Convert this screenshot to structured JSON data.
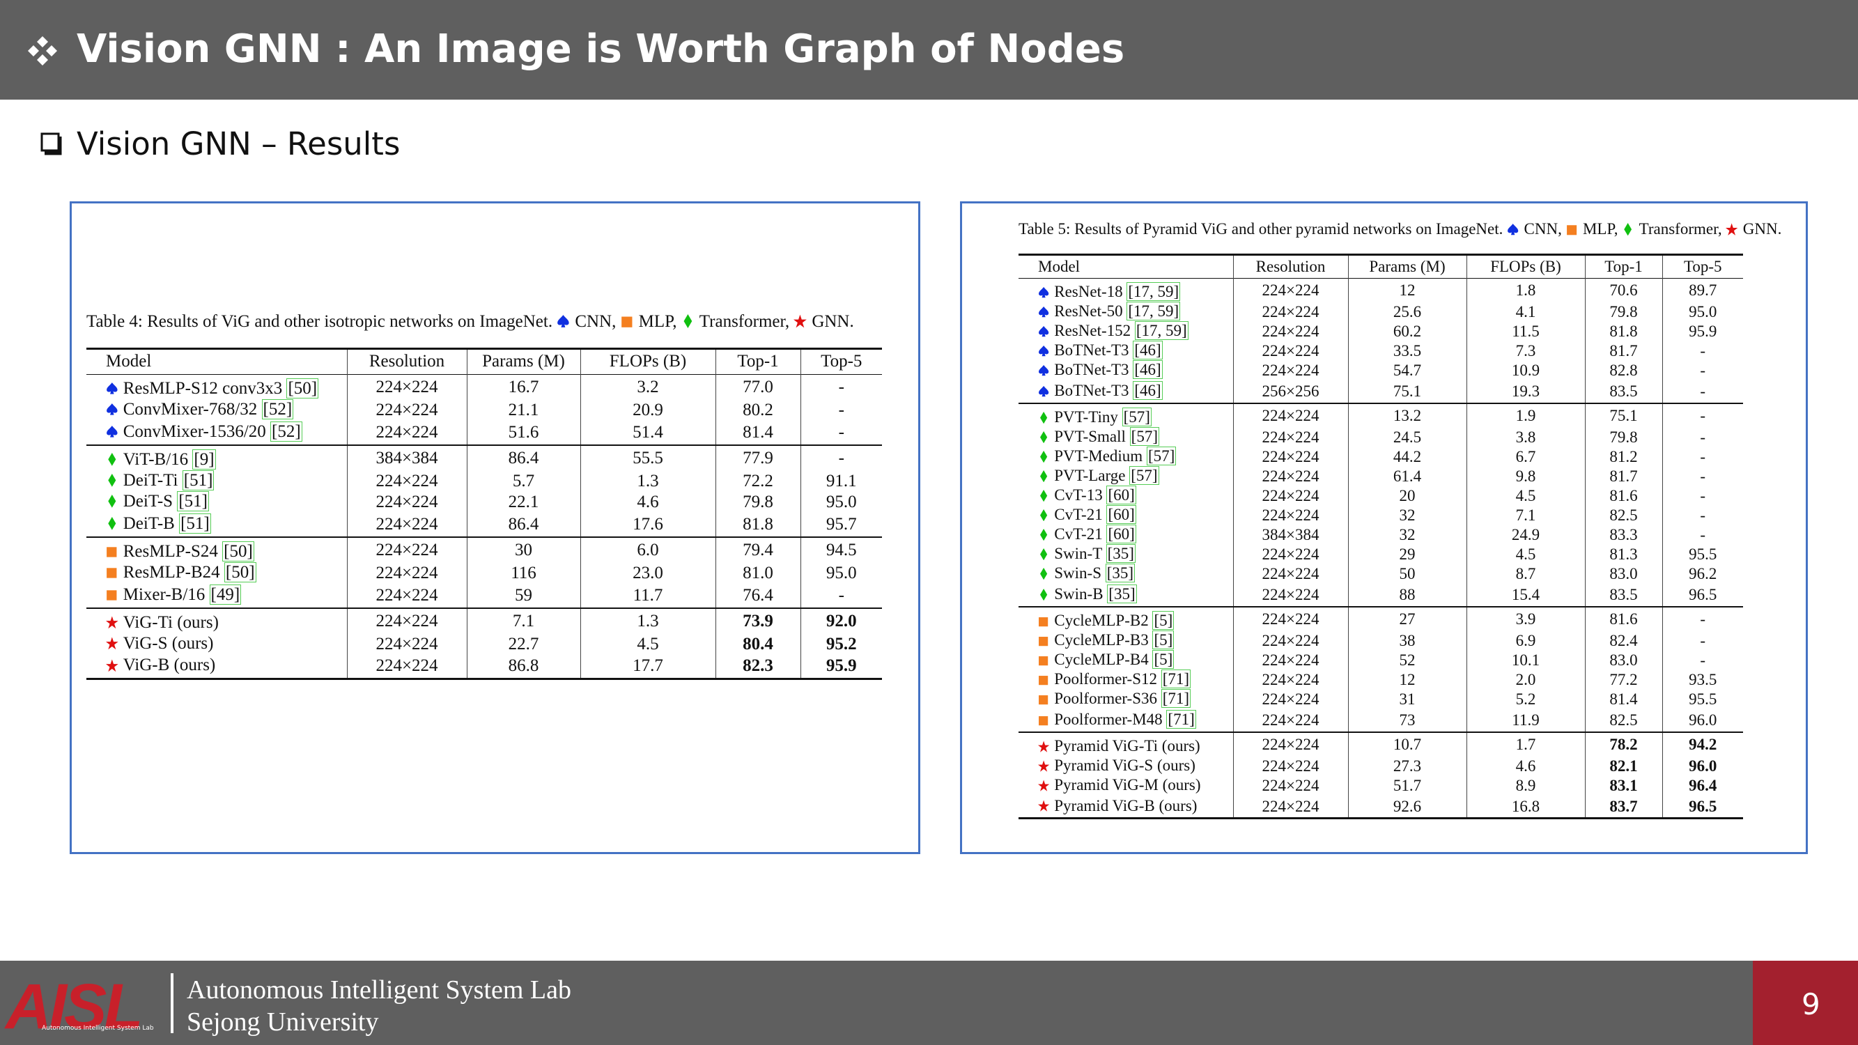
{
  "header": {
    "title": "Vision GNN : An Image is Worth Graph of Nodes"
  },
  "subtitle": "Vision GNN – Results",
  "table4": {
    "caption": "Table 4: Results of ViG and other isotropic networks on ImageNet.",
    "legend": [
      "CNN",
      "MLP",
      "Transformer",
      "GNN"
    ],
    "header": [
      "Model",
      "Resolution",
      "Params (M)",
      "FLOPs (B)",
      "Top-1",
      "Top-5"
    ],
    "groups": [
      {
        "rows": [
          {
            "model": "ResMLP-S12 conv3x3",
            "ref": "[50]",
            "cells": [
              "224×224",
              "16.7",
              "3.2",
              "77.0",
              "-"
            ]
          },
          {
            "model": "ConvMixer-768/32",
            "ref": "[52]",
            "cells": [
              "224×224",
              "21.1",
              "20.9",
              "80.2",
              "-"
            ]
          },
          {
            "model": "ConvMixer-1536/20",
            "ref": "[52]",
            "cells": [
              "224×224",
              "51.6",
              "51.4",
              "81.4",
              "-"
            ]
          }
        ]
      },
      {
        "rows": [
          {
            "model": "ViT-B/16",
            "ref": "[9]",
            "cells": [
              "384×384",
              "86.4",
              "55.5",
              "77.9",
              "-"
            ]
          },
          {
            "model": "DeiT-Ti",
            "ref": "[51]",
            "cells": [
              "224×224",
              "5.7",
              "1.3",
              "72.2",
              "91.1"
            ]
          },
          {
            "model": "DeiT-S",
            "ref": "[51]",
            "cells": [
              "224×224",
              "22.1",
              "4.6",
              "79.8",
              "95.0"
            ]
          },
          {
            "model": "DeiT-B",
            "ref": "[51]",
            "cells": [
              "224×224",
              "86.4",
              "17.6",
              "81.8",
              "95.7"
            ]
          }
        ]
      },
      {
        "rows": [
          {
            "model": "ResMLP-S24",
            "ref": "[50]",
            "cells": [
              "224×224",
              "30",
              "6.0",
              "79.4",
              "94.5"
            ]
          },
          {
            "model": "ResMLP-B24",
            "ref": "[50]",
            "cells": [
              "224×224",
              "116",
              "23.0",
              "81.0",
              "95.0"
            ]
          },
          {
            "model": "Mixer-B/16",
            "ref": "[49]",
            "cells": [
              "224×224",
              "59",
              "11.7",
              "76.4",
              "-"
            ]
          }
        ]
      },
      {
        "rows": [
          {
            "model": "ViG-Ti (ours)",
            "cells": [
              "224×224",
              "7.1",
              "1.3",
              "73.9",
              "92.0"
            ]
          },
          {
            "model": "ViG-S (ours)",
            "cells": [
              "224×224",
              "22.7",
              "4.5",
              "80.4",
              "95.2"
            ]
          },
          {
            "model": "ViG-B (ours)",
            "cells": [
              "224×224",
              "86.8",
              "17.7",
              "82.3",
              "95.9"
            ]
          }
        ]
      }
    ]
  },
  "table5": {
    "caption": "Table 5: Results of Pyramid ViG and other pyramid networks on ImageNet.",
    "legend": [
      "CNN",
      "MLP",
      "Transformer",
      "GNN"
    ],
    "header": [
      "Model",
      "Resolution",
      "Params (M)",
      "FLOPs (B)",
      "Top-1",
      "Top-5"
    ],
    "groups": [
      {
        "rows": [
          {
            "model": "ResNet-18",
            "ref": "[17, 59]",
            "cells": [
              "224×224",
              "12",
              "1.8",
              "70.6",
              "89.7"
            ]
          },
          {
            "model": "ResNet-50",
            "ref": "[17, 59]",
            "cells": [
              "224×224",
              "25.6",
              "4.1",
              "79.8",
              "95.0"
            ]
          },
          {
            "model": "ResNet-152",
            "ref": "[17, 59]",
            "cells": [
              "224×224",
              "60.2",
              "11.5",
              "81.8",
              "95.9"
            ]
          },
          {
            "model": "BoTNet-T3",
            "ref": "[46]",
            "cells": [
              "224×224",
              "33.5",
              "7.3",
              "81.7",
              "-"
            ]
          },
          {
            "model": "BoTNet-T3",
            "ref": "[46]",
            "cells": [
              "224×224",
              "54.7",
              "10.9",
              "82.8",
              "-"
            ]
          },
          {
            "model": "BoTNet-T3",
            "ref": "[46]",
            "cells": [
              "256×256",
              "75.1",
              "19.3",
              "83.5",
              "-"
            ]
          }
        ]
      },
      {
        "rows": [
          {
            "model": "PVT-Tiny",
            "ref": "[57]",
            "cells": [
              "224×224",
              "13.2",
              "1.9",
              "75.1",
              "-"
            ]
          },
          {
            "model": "PVT-Small",
            "ref": "[57]",
            "cells": [
              "224×224",
              "24.5",
              "3.8",
              "79.8",
              "-"
            ]
          },
          {
            "model": "PVT-Medium",
            "ref": "[57]",
            "cells": [
              "224×224",
              "44.2",
              "6.7",
              "81.2",
              "-"
            ]
          },
          {
            "model": "PVT-Large",
            "ref": "[57]",
            "cells": [
              "224×224",
              "61.4",
              "9.8",
              "81.7",
              "-"
            ]
          },
          {
            "model": "CvT-13",
            "ref": "[60]",
            "cells": [
              "224×224",
              "20",
              "4.5",
              "81.6",
              "-"
            ]
          },
          {
            "model": "CvT-21",
            "ref": "[60]",
            "cells": [
              "224×224",
              "32",
              "7.1",
              "82.5",
              "-"
            ]
          },
          {
            "model": "CvT-21",
            "ref": "[60]",
            "cells": [
              "384×384",
              "32",
              "24.9",
              "83.3",
              "-"
            ]
          },
          {
            "model": "Swin-T",
            "ref": "[35]",
            "cells": [
              "224×224",
              "29",
              "4.5",
              "81.3",
              "95.5"
            ]
          },
          {
            "model": "Swin-S",
            "ref": "[35]",
            "cells": [
              "224×224",
              "50",
              "8.7",
              "83.0",
              "96.2"
            ]
          },
          {
            "model": "Swin-B",
            "ref": "[35]",
            "cells": [
              "224×224",
              "88",
              "15.4",
              "83.5",
              "96.5"
            ]
          }
        ]
      },
      {
        "rows": [
          {
            "model": "CycleMLP-B2",
            "ref": "[5]",
            "cells": [
              "224×224",
              "27",
              "3.9",
              "81.6",
              "-"
            ]
          },
          {
            "model": "CycleMLP-B3",
            "ref": "[5]",
            "cells": [
              "224×224",
              "38",
              "6.9",
              "82.4",
              "-"
            ]
          },
          {
            "model": "CycleMLP-B4",
            "ref": "[5]",
            "cells": [
              "224×224",
              "52",
              "10.1",
              "83.0",
              "-"
            ]
          },
          {
            "model": "Poolformer-S12",
            "ref": "[71]",
            "cells": [
              "224×224",
              "12",
              "2.0",
              "77.2",
              "93.5"
            ]
          },
          {
            "model": "Poolformer-S36",
            "ref": "[71]",
            "cells": [
              "224×224",
              "31",
              "5.2",
              "81.4",
              "95.5"
            ]
          },
          {
            "model": "Poolformer-M48",
            "ref": "[71]",
            "cells": [
              "224×224",
              "73",
              "11.9",
              "82.5",
              "96.0"
            ]
          }
        ]
      },
      {
        "rows": [
          {
            "model": "Pyramid ViG-Ti (ours)",
            "cells": [
              "224×224",
              "10.7",
              "1.7",
              "78.2",
              "94.2"
            ]
          },
          {
            "model": "Pyramid ViG-S (ours)",
            "cells": [
              "224×224",
              "27.3",
              "4.6",
              "82.1",
              "96.0"
            ]
          },
          {
            "model": "Pyramid ViG-M (ours)",
            "cells": [
              "224×224",
              "51.7",
              "8.9",
              "83.1",
              "96.4"
            ]
          },
          {
            "model": "Pyramid ViG-B (ours)",
            "cells": [
              "224×224",
              "92.6",
              "16.8",
              "83.7",
              "96.5"
            ]
          }
        ]
      }
    ]
  },
  "footer": {
    "logo": "AISL",
    "logo_caption": "Autonomous Intelligent System Lab",
    "lab": "Autonomous Intelligent System Lab",
    "university": "Sejong University",
    "page": "9"
  }
}
